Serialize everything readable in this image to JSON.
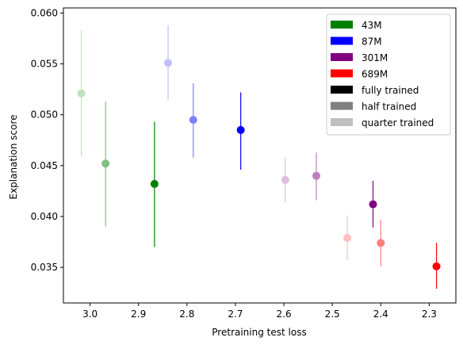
{
  "chart_data": {
    "type": "scatter",
    "title": "",
    "xlabel": "Pretraining test loss",
    "ylabel": "Explanation score",
    "x_inverted": true,
    "xlim": [
      3.055,
      2.245
    ],
    "ylim": [
      0.0315,
      0.0605
    ],
    "xticks": [
      3.0,
      2.9,
      2.8,
      2.7,
      2.6,
      2.5,
      2.4,
      2.3
    ],
    "xtick_labels": [
      "3.0",
      "2.9",
      "2.8",
      "2.7",
      "2.6",
      "2.5",
      "2.4",
      "2.3"
    ],
    "yticks": [
      0.035,
      0.04,
      0.045,
      0.05,
      0.055,
      0.06
    ],
    "ytick_labels": [
      "0.035",
      "0.040",
      "0.045",
      "0.050",
      "0.055",
      "0.060"
    ],
    "grid": false,
    "legend_position": "top-right",
    "legend": [
      {
        "label": "43M",
        "color": "#008000"
      },
      {
        "label": "87M",
        "color": "#0000ff"
      },
      {
        "label": "301M",
        "color": "#800080"
      },
      {
        "label": "689M",
        "color": "#ff0000"
      },
      {
        "label": "fully trained",
        "color": "#000000"
      },
      {
        "label": "half trained",
        "color": "#808080"
      },
      {
        "label": "quarter trained",
        "color": "#bfbfbf"
      }
    ],
    "series": [
      {
        "model": "43M",
        "training": "quarter trained",
        "color": "#bfe0bf",
        "x": 3.018,
        "y": 0.0521,
        "yerr_low": 0.0459,
        "yerr_high": 0.0583
      },
      {
        "model": "43M",
        "training": "half trained",
        "color": "#7fbf7f",
        "x": 2.968,
        "y": 0.0452,
        "yerr_low": 0.039,
        "yerr_high": 0.0513
      },
      {
        "model": "43M",
        "training": "fully trained",
        "color": "#008000",
        "x": 2.867,
        "y": 0.0432,
        "yerr_low": 0.037,
        "yerr_high": 0.0493
      },
      {
        "model": "87M",
        "training": "quarter trained",
        "color": "#bfbfff",
        "x": 2.839,
        "y": 0.0551,
        "yerr_low": 0.0515,
        "yerr_high": 0.0588
      },
      {
        "model": "87M",
        "training": "half trained",
        "color": "#7f7fff",
        "x": 2.787,
        "y": 0.0495,
        "yerr_low": 0.0458,
        "yerr_high": 0.0531
      },
      {
        "model": "87M",
        "training": "fully trained",
        "color": "#0000ff",
        "x": 2.689,
        "y": 0.0485,
        "yerr_low": 0.0446,
        "yerr_high": 0.0522
      },
      {
        "model": "301M",
        "training": "quarter trained",
        "color": "#dfbfdf",
        "x": 2.597,
        "y": 0.0436,
        "yerr_low": 0.0414,
        "yerr_high": 0.0458
      },
      {
        "model": "301M",
        "training": "half trained",
        "color": "#bf7fbf",
        "x": 2.533,
        "y": 0.044,
        "yerr_low": 0.0416,
        "yerr_high": 0.0463
      },
      {
        "model": "301M",
        "training": "fully trained",
        "color": "#800080",
        "x": 2.416,
        "y": 0.0412,
        "yerr_low": 0.0389,
        "yerr_high": 0.0435
      },
      {
        "model": "689M",
        "training": "quarter trained",
        "color": "#ffbfbf",
        "x": 2.469,
        "y": 0.0379,
        "yerr_low": 0.0357,
        "yerr_high": 0.0401
      },
      {
        "model": "689M",
        "training": "half trained",
        "color": "#ff7f7f",
        "x": 2.4,
        "y": 0.0374,
        "yerr_low": 0.0351,
        "yerr_high": 0.0397
      },
      {
        "model": "689M",
        "training": "fully trained",
        "color": "#ff0000",
        "x": 2.285,
        "y": 0.0351,
        "yerr_low": 0.0329,
        "yerr_high": 0.0374
      }
    ]
  }
}
